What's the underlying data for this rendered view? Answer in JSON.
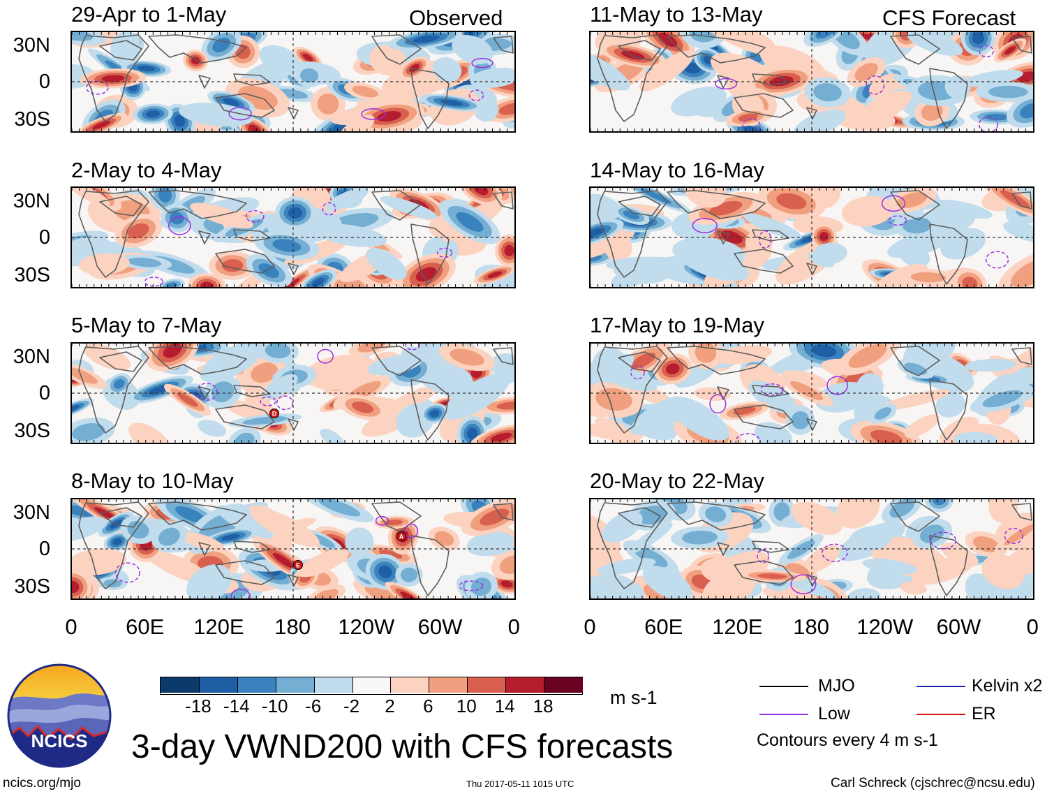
{
  "column_headers": {
    "left": "Observed",
    "right": "CFS Forecast"
  },
  "panels": [
    {
      "title": "29-Apr to 1-May",
      "column": "observed"
    },
    {
      "title": "2-May to 4-May",
      "column": "observed"
    },
    {
      "title": "5-May to 7-May",
      "column": "observed"
    },
    {
      "title": "8-May to 10-May",
      "column": "observed"
    },
    {
      "title": "11-May to 13-May",
      "column": "forecast"
    },
    {
      "title": "14-May to 16-May",
      "column": "forecast"
    },
    {
      "title": "17-May to 19-May",
      "column": "forecast"
    },
    {
      "title": "20-May to 22-May",
      "column": "forecast"
    }
  ],
  "y_axis_labels": [
    "30N",
    "0",
    "30S"
  ],
  "x_axis_labels": [
    "0",
    "60E",
    "120E",
    "180",
    "120W",
    "60W",
    "0"
  ],
  "colorbar": {
    "labels": [
      "-18",
      "-14",
      "-10",
      "-6",
      "-2",
      "2",
      "6",
      "10",
      "14",
      "18"
    ],
    "units": "m s-1",
    "colors": [
      "#0b3a6b",
      "#1f5fa6",
      "#3a82bd",
      "#74afd3",
      "#c1dcec",
      "#f7f7f7",
      "#fbd3c0",
      "#f1a07f",
      "#d95f4e",
      "#b51d2e",
      "#6a0322"
    ]
  },
  "legend": {
    "items": [
      {
        "label": "MJO",
        "color": "#000000"
      },
      {
        "label": "Kelvin x2",
        "color": "#2020b0"
      },
      {
        "label": "Low",
        "color": "#9a30e0"
      },
      {
        "label": "ER",
        "color": "#d01818"
      }
    ],
    "note": "Contours every 4 m s-1"
  },
  "logo_text": "NCICS",
  "main_title": "3-day VWND200 with CFS forecasts",
  "footer": {
    "url": "ncics.org/mjo",
    "timestamp": "Thu 2017-05-11 1015 UTC",
    "author": "Carl Schreck (cjschrec@ncsu.edu)"
  },
  "storm_markers": [
    {
      "panel": 2,
      "label": "D"
    },
    {
      "panel": 3,
      "label": "A"
    },
    {
      "panel": 3,
      "label": "E"
    }
  ]
}
